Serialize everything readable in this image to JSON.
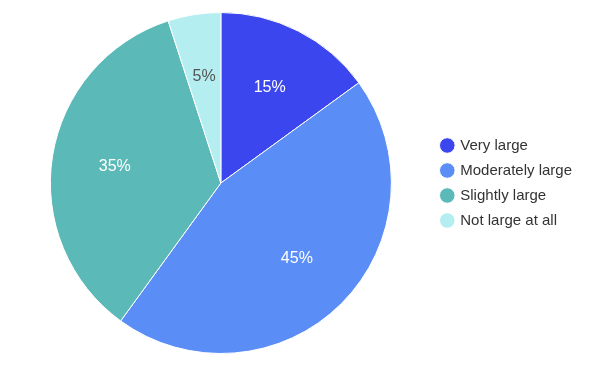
{
  "chart_data": {
    "type": "pie",
    "categories": [
      "Very large",
      "Moderately large",
      "Slightly large",
      "Not large at all"
    ],
    "values": [
      15,
      45,
      35,
      5
    ],
    "value_labels": [
      "15%",
      "45%",
      "35%",
      "5%"
    ],
    "colors": [
      "#3c46ee",
      "#5a8df5",
      "#5bbab7",
      "#b4eef0"
    ],
    "legend": "right",
    "data_labels": true
  }
}
